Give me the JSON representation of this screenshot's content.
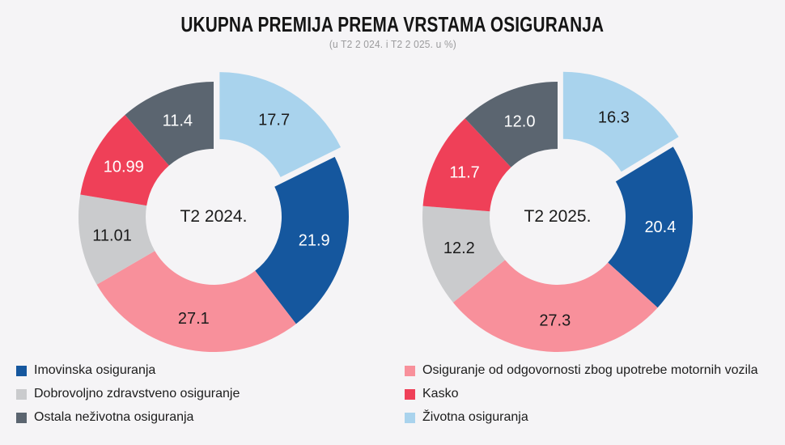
{
  "header": {
    "title": "UKUPNA PREMIJA PREMA VRSTAMA OSIGURANJA",
    "subtitle": "(u T2 2 024. i T2 2 025. u %)"
  },
  "colors": {
    "background": "#F5F4F6",
    "imovinska_blue": "#15579E",
    "dobrovoljno_light_gray": "#CACBCD",
    "ostala_dark_gray": "#5B6570",
    "motorna_pink": "#F8909B",
    "kasko_red": "#EF4058",
    "zivotna_light_blue": "#A9D3ED"
  },
  "chart_data": [
    {
      "type": "pie",
      "donut": true,
      "title": "T2 2024.",
      "start_angle_deg": 0,
      "direction": "clockwise",
      "units": "%",
      "slices": [
        {
          "label": "Životna osiguranja",
          "value": 17.7,
          "display": "17.7",
          "color": "#A9D3ED",
          "label_color": "#1B1B1B",
          "exploded": true
        },
        {
          "label": "Imovinska osiguranja",
          "value": 21.9,
          "display": "21.9",
          "color": "#15579E",
          "label_color": "#FFFFFF",
          "exploded": false
        },
        {
          "label": "Osiguranje od odgovornosti zbog upotrebe motornih vozila",
          "value": 27.1,
          "display": "27.1",
          "color": "#F8909B",
          "label_color": "#1B1B1B",
          "exploded": false
        },
        {
          "label": "Dobrovoljno zdravstveno osiguranje",
          "value": 11.01,
          "display": "11.01",
          "color": "#CACBCD",
          "label_color": "#1B1B1B",
          "exploded": false
        },
        {
          "label": "Kasko",
          "value": 10.99,
          "display": "10.99",
          "color": "#EF4058",
          "label_color": "#FFFFFF",
          "exploded": false
        },
        {
          "label": "Ostala neživotna osiguranja",
          "value": 11.4,
          "display": "11.4",
          "color": "#5B6570",
          "label_color": "#FFFFFF",
          "exploded": false
        }
      ]
    },
    {
      "type": "pie",
      "donut": true,
      "title": "T2 2025.",
      "start_angle_deg": 0,
      "direction": "clockwise",
      "units": "%",
      "slices": [
        {
          "label": "Životna osiguranja",
          "value": 16.3,
          "display": "16.3",
          "color": "#A9D3ED",
          "label_color": "#1B1B1B",
          "exploded": true
        },
        {
          "label": "Imovinska osiguranja",
          "value": 20.4,
          "display": "20.4",
          "color": "#15579E",
          "label_color": "#FFFFFF",
          "exploded": false
        },
        {
          "label": "Osiguranje od odgovornosti zbog upotrebe motornih vozila",
          "value": 27.3,
          "display": "27.3",
          "color": "#F8909B",
          "label_color": "#1B1B1B",
          "exploded": false
        },
        {
          "label": "Dobrovoljno zdravstveno osiguranje",
          "value": 12.2,
          "display": "12.2",
          "color": "#CACBCD",
          "label_color": "#1B1B1B",
          "exploded": false
        },
        {
          "label": "Kasko",
          "value": 11.7,
          "display": "11.7",
          "color": "#EF4058",
          "label_color": "#FFFFFF",
          "exploded": false
        },
        {
          "label": "Ostala neživotna osiguranja",
          "value": 12.0,
          "display": "12.0",
          "color": "#5B6570",
          "label_color": "#FFFFFF",
          "exploded": false
        }
      ]
    }
  ],
  "legend": {
    "left": [
      {
        "label": "Imovinska osiguranja",
        "color": "#15579E"
      },
      {
        "label": "Dobrovoljno zdravstveno osiguranje",
        "color": "#CACBCD"
      },
      {
        "label": "Ostala neživotna osiguranja",
        "color": "#5B6570"
      }
    ],
    "right": [
      {
        "label": "Osiguranje od odgovornosti zbog upotrebe motornih vozila",
        "color": "#F8909B"
      },
      {
        "label": "Kasko",
        "color": "#EF4058"
      },
      {
        "label": "Životna osiguranja",
        "color": "#A9D3ED"
      }
    ]
  }
}
